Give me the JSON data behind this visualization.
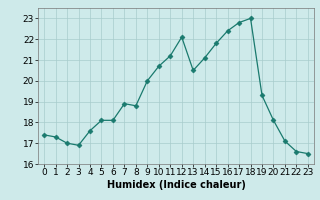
{
  "x": [
    0,
    1,
    2,
    3,
    4,
    5,
    6,
    7,
    8,
    9,
    10,
    11,
    12,
    13,
    14,
    15,
    16,
    17,
    18,
    19,
    20,
    21,
    22,
    23
  ],
  "y": [
    17.4,
    17.3,
    17.0,
    16.9,
    17.6,
    18.1,
    18.1,
    18.9,
    18.8,
    20.0,
    20.7,
    21.2,
    22.1,
    20.5,
    21.1,
    21.8,
    22.4,
    22.8,
    23.0,
    19.3,
    18.1,
    17.1,
    16.6,
    16.5
  ],
  "line_color": "#1a7a6e",
  "marker": "D",
  "marker_size": 2.5,
  "bg_color": "#ceeaea",
  "grid_color": "#a8cccc",
  "xlabel": "Humidex (Indice chaleur)",
  "xlim": [
    -0.5,
    23.5
  ],
  "ylim": [
    16,
    23.5
  ],
  "yticks": [
    16,
    17,
    18,
    19,
    20,
    21,
    22,
    23
  ],
  "xticks": [
    0,
    1,
    2,
    3,
    4,
    5,
    6,
    7,
    8,
    9,
    10,
    11,
    12,
    13,
    14,
    15,
    16,
    17,
    18,
    19,
    20,
    21,
    22,
    23
  ],
  "xlabel_fontsize": 7,
  "tick_fontsize": 6.5
}
